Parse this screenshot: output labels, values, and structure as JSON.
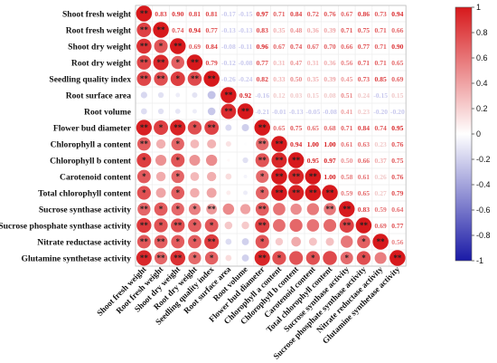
{
  "chart_data": {
    "type": "heatmap",
    "style": "correlogram with lower-triangle circles and upper-triangle coefficients",
    "variables": [
      "Shoot fresh weight",
      "Root fresh weight",
      "Shoot dry weight",
      "Root dry weight",
      "Seedling quality index",
      "Root surface area",
      "Root volume",
      "Flower bud diameter",
      "Chlorophyll a content",
      "Chlorophyll b content",
      "Carotenoid content",
      "Total chlorophyll content",
      "Sucrose synthase activity",
      "Sucrose phosphate synthase activity",
      "Nitrate reductase activity",
      "Glutamine synthetase activity"
    ],
    "upper_triangle_values": [
      [
        0.83,
        0.9,
        0.81,
        0.81,
        -0.17,
        -0.15,
        0.97,
        0.71,
        0.84,
        0.72,
        0.76,
        0.67,
        0.86,
        0.73,
        0.94
      ],
      [
        0.74,
        0.94,
        0.77,
        -0.13,
        -0.13,
        0.83,
        0.35,
        0.48,
        0.36,
        0.39,
        0.71,
        0.75,
        0.71,
        0.66
      ],
      [
        0.69,
        0.84,
        -0.08,
        -0.11,
        0.96,
        0.67,
        0.74,
        0.67,
        0.7,
        0.66,
        0.77,
        0.71,
        0.9
      ],
      [
        0.79,
        -0.12,
        -0.08,
        0.77,
        0.31,
        0.47,
        0.31,
        0.36,
        0.56,
        0.71,
        0.71,
        0.65
      ],
      [
        -0.26,
        -0.24,
        0.82,
        0.33,
        0.5,
        0.35,
        0.39,
        0.45,
        0.73,
        0.85,
        0.69
      ],
      [
        0.92,
        -0.16,
        0.12,
        0.03,
        0.15,
        0.08,
        0.51,
        0.24,
        -0.15,
        0.15
      ],
      [
        -0.21,
        -0.01,
        -0.13,
        -0.05,
        -0.08,
        0.41,
        0.23,
        -0.2,
        -0.2
      ],
      [
        0.65,
        0.75,
        0.65,
        0.68,
        0.71,
        0.84,
        0.74,
        0.95
      ],
      [
        0.94,
        1.0,
        1.0,
        0.61,
        0.63,
        0.23,
        0.76
      ],
      [
        0.95,
        0.97,
        0.5,
        0.66,
        0.37,
        0.75
      ],
      [
        1.0,
        0.58,
        0.61,
        0.26,
        0.76
      ],
      [
        0.59,
        0.65,
        0.27,
        0.79
      ],
      [
        0.83,
        0.59,
        0.64
      ],
      [
        0.69,
        0.77
      ],
      [
        0.56
      ]
    ],
    "significance_marks_lower": [
      [
        "**"
      ],
      [
        "**",
        "*"
      ],
      [
        "**",
        "**",
        "*"
      ],
      [
        "**",
        "**",
        "*",
        "**"
      ],
      [
        "",
        "",
        "",
        "",
        ""
      ],
      [
        "",
        "",
        "",
        "",
        "",
        "**"
      ],
      [
        "**",
        "*",
        "**",
        "*",
        "**",
        "",
        ""
      ],
      [
        "**",
        "",
        "*",
        "",
        "",
        "",
        "",
        "**"
      ],
      [
        "*",
        "",
        "*",
        "",
        "",
        "",
        "",
        "**",
        "**"
      ],
      [
        "*",
        "",
        "*",
        "",
        "",
        "",
        "",
        "*",
        "**",
        "**"
      ],
      [
        "*",
        "",
        "*",
        "",
        "",
        "",
        "",
        "*",
        "**",
        "**",
        "**"
      ],
      [
        "**",
        "*",
        "*",
        "*",
        "**",
        "",
        "",
        "**",
        "",
        "",
        "",
        "**"
      ],
      [
        "**",
        "*",
        "**",
        "*",
        "*",
        "",
        "",
        "**",
        "",
        "",
        "",
        "",
        "**"
      ],
      [
        "**",
        "**",
        "*",
        "*",
        "**",
        "",
        "",
        "*",
        "",
        "",
        "",
        "",
        "",
        "*"
      ],
      [
        "**",
        "**",
        "**",
        "*",
        "*",
        "",
        "",
        "**",
        "*",
        "",
        "*",
        "",
        "*",
        "*",
        ""
      ]
    ],
    "colorbar": {
      "ticks": [
        "1",
        "0.8",
        "0.6",
        "0.4",
        "0.2",
        "0",
        "-0.2",
        "-0.4",
        "-0.6",
        "-0.8",
        "-1"
      ],
      "range": [
        -1,
        1
      ],
      "high_color": "#d7191c",
      "mid_color": "#ffffff",
      "low_color": "#1a1aa6"
    }
  }
}
